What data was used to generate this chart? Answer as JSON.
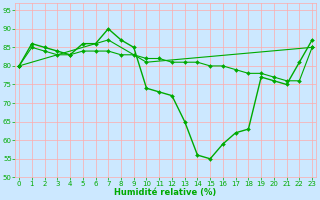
{
  "line1": {
    "x": [
      0,
      1,
      2,
      3,
      4,
      5,
      6,
      7,
      8,
      9,
      10,
      11,
      12,
      13,
      14,
      15,
      16,
      17,
      18,
      19,
      20,
      21,
      22,
      23
    ],
    "y": [
      80,
      86,
      85,
      84,
      83,
      86,
      86,
      90,
      87,
      85,
      74,
      73,
      72,
      65,
      56,
      55,
      59,
      62,
      63,
      77,
      76,
      75,
      81,
      87
    ],
    "color": "#00aa00",
    "markersize": 2.0,
    "linewidth": 1.0
  },
  "line2": {
    "x": [
      0,
      1,
      2,
      3,
      4,
      5,
      6,
      7,
      8,
      9,
      10,
      11,
      12,
      13,
      14,
      15,
      16,
      17,
      18,
      19,
      20,
      21,
      22,
      23
    ],
    "y": [
      80,
      85,
      84,
      83,
      83,
      84,
      84,
      84,
      83,
      83,
      82,
      82,
      81,
      81,
      81,
      80,
      80,
      79,
      78,
      78,
      77,
      76,
      76,
      85
    ],
    "color": "#00aa00",
    "markersize": 2.0,
    "linewidth": 0.8
  },
  "line3": {
    "x": [
      0,
      7,
      10,
      23
    ],
    "y": [
      80,
      87,
      81,
      85
    ],
    "color": "#00aa00",
    "markersize": 2.0,
    "linewidth": 0.8
  },
  "xlim": [
    -0.3,
    23.3
  ],
  "ylim": [
    50,
    97
  ],
  "yticks": [
    50,
    55,
    60,
    65,
    70,
    75,
    80,
    85,
    90,
    95
  ],
  "xticks": [
    0,
    1,
    2,
    3,
    4,
    5,
    6,
    7,
    8,
    9,
    10,
    11,
    12,
    13,
    14,
    15,
    16,
    17,
    18,
    19,
    20,
    21,
    22,
    23
  ],
  "xlabel": "Humidité relative (%)",
  "xlabel_color": "#00aa00",
  "xlabel_fontsize": 6,
  "bg_color": "#cce8ff",
  "grid_color": "#ffaaaa",
  "axes_color": "#aaccff",
  "tick_color": "#00aa00",
  "tick_fontsize": 5,
  "fig_width": 3.2,
  "fig_height": 2.0,
  "dpi": 100
}
